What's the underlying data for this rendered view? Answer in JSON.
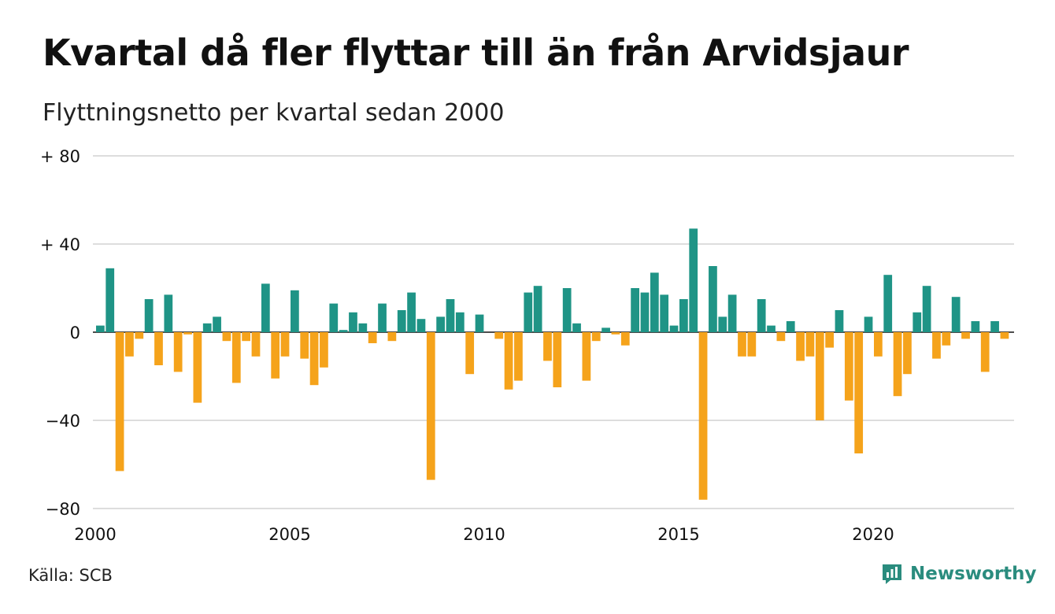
{
  "chart_data": {
    "type": "bar",
    "title": "Kvartal då fler flyttar till än från Arvidsjaur",
    "subtitle": "Flyttningsnetto per kvartal sedan 2000",
    "ylim": [
      -80,
      80
    ],
    "yticks": [
      80,
      40,
      0,
      -40,
      -80
    ],
    "ytick_labels": [
      "+ 80",
      "+ 40",
      "0",
      "−40",
      "−80"
    ],
    "xticks": [
      2000,
      2005,
      2010,
      2015,
      2020
    ],
    "xtick_labels": [
      "2000",
      "2005",
      "2010",
      "2015",
      "2020"
    ],
    "grid": true,
    "colors": {
      "positive": "#1f9486",
      "negative": "#f5a31b",
      "grid": "#dddddd",
      "zero": "#111111"
    },
    "start_year": 2000,
    "values": [
      3,
      29,
      -63,
      -11,
      -3,
      15,
      -15,
      17,
      -18,
      -1,
      -32,
      4,
      7,
      -4,
      -23,
      -4,
      -11,
      22,
      -21,
      -11,
      19,
      -12,
      -24,
      -16,
      13,
      1,
      9,
      4,
      -5,
      13,
      -4,
      10,
      18,
      6,
      -67,
      7,
      15,
      9,
      -19,
      8,
      0,
      -3,
      -26,
      -22,
      18,
      21,
      -13,
      -25,
      20,
      4,
      -22,
      -4,
      2,
      -1,
      -6,
      20,
      18,
      27,
      17,
      3,
      15,
      47,
      -76,
      30,
      7,
      17,
      -11,
      -11,
      15,
      3,
      -4,
      5,
      -13,
      -11,
      -40,
      -7,
      10,
      -31,
      -55,
      7,
      -11,
      26,
      -29,
      -19,
      9,
      21,
      -12,
      -6,
      16,
      -3,
      5,
      -18,
      5,
      -3
    ]
  },
  "footer": {
    "source": "Källa: SCB",
    "brand": "Newsworthy",
    "brand_icon": "newsworthy-logo-icon"
  }
}
